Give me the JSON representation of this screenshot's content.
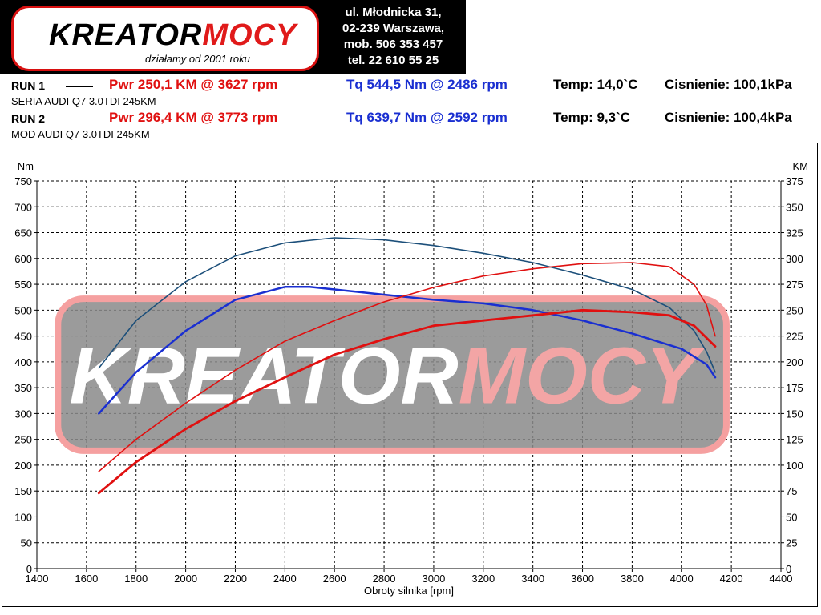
{
  "header": {
    "logo": {
      "brand_first": "KREATOR",
      "brand_second": "MOCY",
      "tagline": "działamy od 2001 roku"
    },
    "address_lines": [
      "ul. Młodnicka 31,",
      "02-239  Warszawa,",
      "mob.  506 353 457",
      "tel.  22 610 55 25"
    ]
  },
  "runs": [
    {
      "label": "RUN 1",
      "car": "SERIA AUDI Q7 3.0TDI 245KM",
      "power": "Pwr  250,1 KM @ 3627 rpm",
      "torque": "Tq 544,5 Nm @ 2486 rpm",
      "temp": "Temp: 14,0`C",
      "pressure": "Cisnienie: 100,1kPa"
    },
    {
      "label": "RUN 2",
      "car": "MOD AUDI Q7 3.0TDI 245KM",
      "power": "Pwr  296,4 KM @ 3773 rpm",
      "torque": "Tq 639,7 Nm @ 2592 rpm",
      "temp": "Temp: 9,3`C",
      "pressure": "Cisnienie: 100,4kPa"
    }
  ],
  "colors": {
    "power": "#e01010",
    "torque_run1": "#1a2fd1",
    "torque_run2": "#1c4f7a",
    "watermark_band": "#8a8a8a",
    "watermark_border": "#f5a0a0"
  },
  "watermark": {
    "brand_first": "KREATOR",
    "brand_second": "MOCY"
  },
  "chart_data": {
    "type": "line",
    "xlabel": "Obroty silnika [rpm]",
    "ylabel_left": "Nm",
    "ylabel_right": "KM",
    "xlim": [
      1400,
      4400
    ],
    "ylim_left": [
      0,
      750
    ],
    "ylim_right": [
      0,
      375
    ],
    "x_ticks": [
      1400,
      1600,
      1800,
      2000,
      2200,
      2400,
      2600,
      2800,
      3000,
      3200,
      3400,
      3600,
      3800,
      4000,
      4200,
      4400
    ],
    "y_ticks_left": [
      0,
      50,
      100,
      150,
      200,
      250,
      300,
      350,
      400,
      450,
      500,
      550,
      600,
      650,
      700,
      750
    ],
    "y_ticks_right": [
      0,
      25,
      50,
      75,
      100,
      125,
      150,
      175,
      200,
      225,
      250,
      275,
      300,
      325,
      350,
      375
    ],
    "grid": true,
    "series": [
      {
        "run": "RUN 1",
        "quantity": "torque",
        "axis": "left",
        "color": "#1a2fd1",
        "width": 2.5,
        "points": [
          [
            1650,
            300
          ],
          [
            1800,
            380
          ],
          [
            2000,
            460
          ],
          [
            2200,
            520
          ],
          [
            2400,
            545
          ],
          [
            2500,
            545
          ],
          [
            2600,
            540
          ],
          [
            2800,
            530
          ],
          [
            3000,
            520
          ],
          [
            3200,
            513
          ],
          [
            3400,
            500
          ],
          [
            3600,
            480
          ],
          [
            3800,
            455
          ],
          [
            4000,
            425
          ],
          [
            4100,
            395
          ],
          [
            4135,
            370
          ]
        ]
      },
      {
        "run": "RUN 2",
        "quantity": "torque",
        "axis": "left",
        "color": "#1c4f7a",
        "width": 1.6,
        "points": [
          [
            1650,
            388
          ],
          [
            1800,
            480
          ],
          [
            2000,
            555
          ],
          [
            2200,
            605
          ],
          [
            2400,
            630
          ],
          [
            2600,
            640
          ],
          [
            2800,
            636
          ],
          [
            3000,
            625
          ],
          [
            3200,
            610
          ],
          [
            3400,
            592
          ],
          [
            3600,
            568
          ],
          [
            3800,
            540
          ],
          [
            3950,
            505
          ],
          [
            4050,
            460
          ],
          [
            4100,
            420
          ],
          [
            4135,
            380
          ]
        ]
      },
      {
        "run": "RUN 1",
        "quantity": "power",
        "axis": "right",
        "color": "#e01010",
        "width": 2.8,
        "points": [
          [
            1650,
            73
          ],
          [
            1800,
            103
          ],
          [
            2000,
            135
          ],
          [
            2200,
            162
          ],
          [
            2400,
            185
          ],
          [
            2600,
            207
          ],
          [
            2800,
            222
          ],
          [
            3000,
            235
          ],
          [
            3200,
            240
          ],
          [
            3400,
            245
          ],
          [
            3600,
            250
          ],
          [
            3800,
            248
          ],
          [
            3950,
            245
          ],
          [
            4050,
            235
          ],
          [
            4135,
            215
          ]
        ]
      },
      {
        "run": "RUN 2",
        "quantity": "power",
        "axis": "right",
        "color": "#e01010",
        "width": 1.6,
        "points": [
          [
            1650,
            94
          ],
          [
            1800,
            125
          ],
          [
            2000,
            160
          ],
          [
            2200,
            192
          ],
          [
            2400,
            220
          ],
          [
            2600,
            240
          ],
          [
            2800,
            258
          ],
          [
            3000,
            272
          ],
          [
            3200,
            283
          ],
          [
            3400,
            290
          ],
          [
            3600,
            295
          ],
          [
            3800,
            296
          ],
          [
            3950,
            292
          ],
          [
            4050,
            275
          ],
          [
            4100,
            255
          ],
          [
            4135,
            225
          ]
        ]
      }
    ]
  }
}
